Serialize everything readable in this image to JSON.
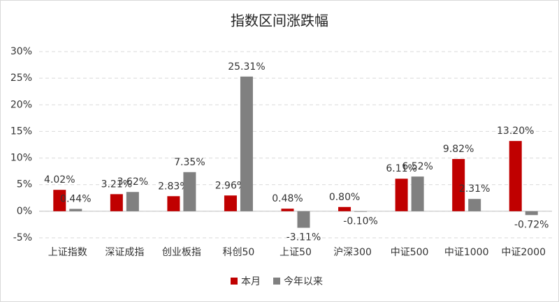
{
  "chart_data": {
    "type": "bar",
    "title": "指数区间涨跌幅",
    "categories": [
      "上证指数",
      "深证成指",
      "创业板指",
      "科创50",
      "上证50",
      "沪深300",
      "中证500",
      "中证1000",
      "中证2000"
    ],
    "series": [
      {
        "name": "本月",
        "color": "#c00000",
        "values": [
          4.02,
          3.21,
          2.83,
          2.96,
          0.48,
          0.8,
          6.11,
          9.82,
          13.2
        ],
        "value_labels": [
          "4.02%",
          "3.21%",
          "2.83%",
          "2.96%",
          "0.48%",
          "0.80%",
          "6.11%",
          "9.82%",
          "13.20%"
        ]
      },
      {
        "name": "今年以来",
        "color": "#808080",
        "values": [
          0.44,
          3.62,
          7.35,
          25.31,
          -3.11,
          -0.1,
          6.52,
          2.31,
          -0.72
        ],
        "value_labels": [
          "0.44%",
          "3.62%",
          "7.35%",
          "25.31%",
          "-3.11%",
          "-0.10%",
          "6.52%",
          "2.31%",
          "-0.72%"
        ]
      }
    ],
    "ylim": [
      -5,
      30
    ],
    "yticks": [
      {
        "value": -5,
        "label": "-5%"
      },
      {
        "value": 0,
        "label": "0%"
      },
      {
        "value": 5,
        "label": "5%"
      },
      {
        "value": 10,
        "label": "10%"
      },
      {
        "value": 15,
        "label": "15%"
      },
      {
        "value": 20,
        "label": "20%"
      },
      {
        "value": 25,
        "label": "25%"
      },
      {
        "value": 30,
        "label": "30%"
      }
    ],
    "grid": true,
    "legend": "bottom"
  }
}
